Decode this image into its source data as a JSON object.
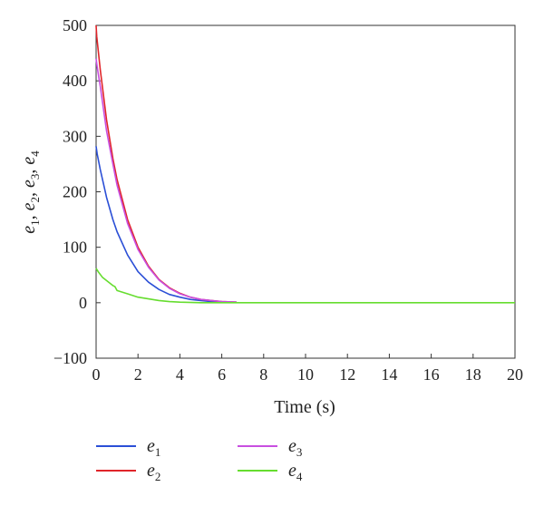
{
  "chart_data": {
    "type": "line",
    "title": "",
    "xlabel": "Time (s)",
    "ylabel": "e₁, e₂, e₃, e₄",
    "xlim": [
      0,
      20
    ],
    "ylim": [
      -100,
      500
    ],
    "xticks": [
      "0",
      "2",
      "4",
      "6",
      "8",
      "10",
      "12",
      "14",
      "16",
      "18",
      "20"
    ],
    "yticks": [
      "500",
      "400",
      "300",
      "200",
      "100",
      "0",
      "−100"
    ],
    "grid": false,
    "legend_position": "bottom",
    "series": [
      {
        "name": "e1",
        "symbol": "e",
        "subscript": "1",
        "color": "#2b4fd6",
        "x": [
          0,
          0.05,
          0.2,
          0.5,
          0.8,
          1,
          1.5,
          2,
          2.5,
          3,
          3.5,
          4,
          4.5,
          5,
          5.5,
          6,
          6.7
        ],
        "y": [
          282,
          268,
          240,
          190,
          150,
          128,
          86,
          56,
          37,
          24,
          15,
          10,
          6,
          4,
          2,
          1,
          1
        ]
      },
      {
        "name": "e2",
        "symbol": "e",
        "subscript": "2",
        "color": "#e0252a",
        "x": [
          0,
          0.03,
          0.2,
          0.5,
          0.8,
          1,
          1.5,
          2,
          2.5,
          3,
          3.5,
          4,
          4.5,
          5,
          5.5,
          6,
          6.7
        ],
        "y": [
          500,
          480,
          420,
          330,
          260,
          222,
          150,
          100,
          66,
          42,
          27,
          17,
          10,
          6,
          4,
          2,
          1
        ]
      },
      {
        "name": "e3",
        "symbol": "e",
        "subscript": "3",
        "color": "#c84fe0",
        "x": [
          0,
          0.05,
          0.2,
          0.5,
          0.8,
          1,
          1.5,
          2,
          2.5,
          3,
          3.5,
          4,
          4.5,
          5,
          5.5,
          6,
          6.7
        ],
        "y": [
          440,
          425,
          390,
          310,
          250,
          212,
          143,
          96,
          64,
          41,
          26,
          16,
          10,
          6,
          4,
          2,
          1
        ]
      },
      {
        "name": "e4",
        "symbol": "e",
        "subscript": "4",
        "color": "#66dd2f",
        "x": [
          0,
          0.1,
          0.3,
          0.5,
          0.8,
          0.9,
          1.0,
          1.5,
          2,
          2.5,
          3,
          3.5,
          4,
          5,
          6,
          8,
          10,
          12,
          14,
          16,
          18,
          20
        ],
        "y": [
          62,
          56,
          46,
          40,
          31,
          29,
          22,
          16,
          10,
          7,
          4,
          2,
          1,
          0,
          0,
          0,
          0,
          0,
          0,
          0,
          0,
          0
        ]
      }
    ]
  }
}
